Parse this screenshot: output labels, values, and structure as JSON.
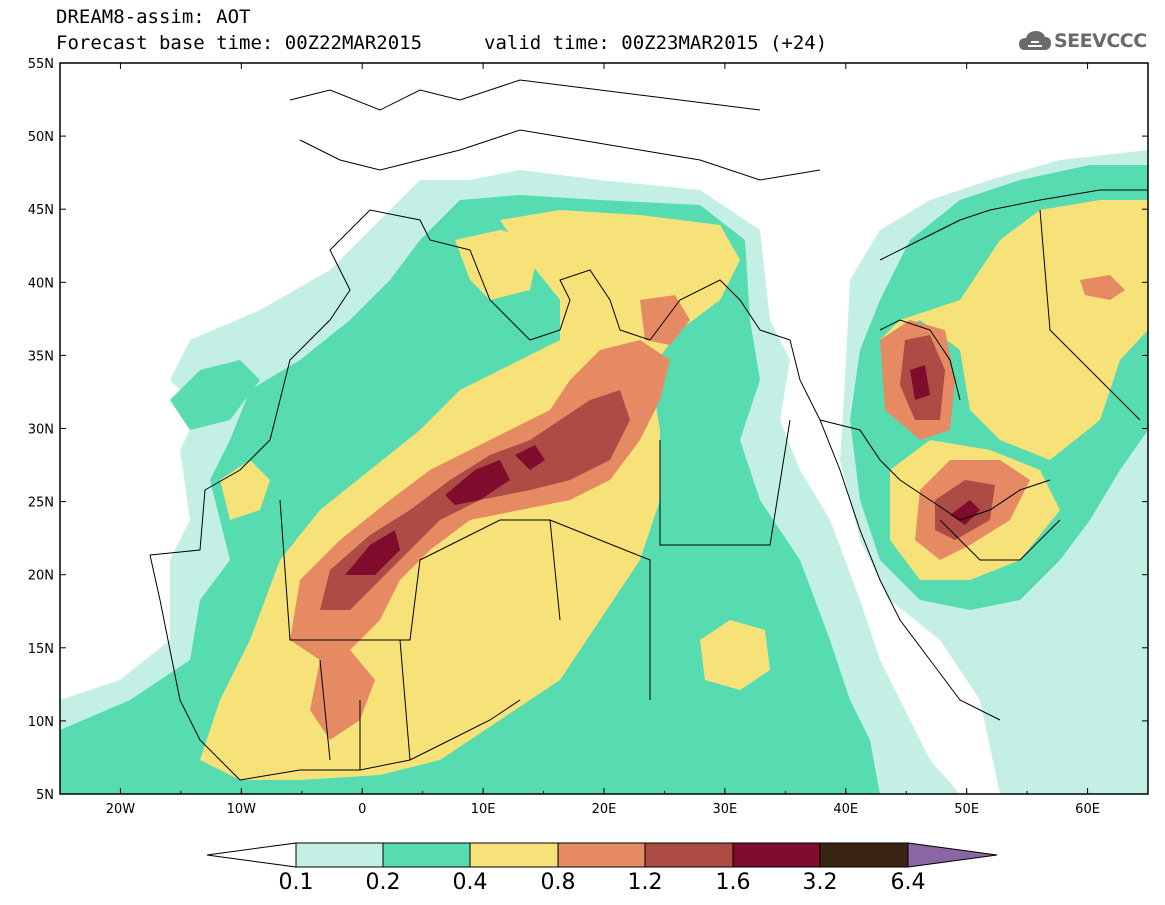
{
  "title": "DREAM8-assim: AOT",
  "base_time": "Forecast base time: 00Z22MAR2015",
  "valid_time": "valid time: 00Z23MAR2015 (+24)",
  "logo_text": "SEEVCCC",
  "map": {
    "lat_labels": [
      "55N",
      "50N",
      "45N",
      "40N",
      "35N",
      "30N",
      "25N",
      "20N",
      "15N",
      "10N",
      "5N"
    ],
    "lon_labels": [
      "20W",
      "10W",
      "0",
      "10E",
      "20E",
      "30E",
      "40E",
      "50E",
      "60E"
    ]
  },
  "colorbar": {
    "labels": [
      "0.1",
      "0.2",
      "0.4",
      "0.8",
      "1.2",
      "1.6",
      "3.2",
      "6.4"
    ],
    "colors": [
      "#ffffff",
      "#c4efe5",
      "#57dcb1",
      "#f7e27a",
      "#e58a63",
      "#ad4b45",
      "#7f0c2c",
      "#3a2413",
      "#8a66a5"
    ]
  },
  "chart_data": {
    "type": "heatmap",
    "title": "DREAM8-assim: AOT",
    "variable": "AOT",
    "x_range": [
      "25W",
      "65E"
    ],
    "y_range": [
      "5N",
      "55N"
    ],
    "levels": [
      0.1,
      0.2,
      0.4,
      0.8,
      1.2,
      1.6,
      3.2,
      6.4
    ]
  }
}
